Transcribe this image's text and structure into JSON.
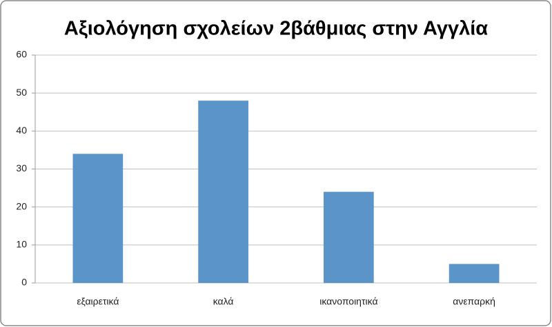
{
  "chart_data": {
    "type": "bar",
    "title": "Αξιολόγηση σχολείων 2βάθμιας στην Αγγλία",
    "categories": [
      "εξαιρετικά",
      "καλά",
      "ικανοποιητικά",
      "ανεπαρκή"
    ],
    "values": [
      34,
      48,
      24,
      5
    ],
    "color": "#5b94c9",
    "ylim": [
      0,
      60
    ],
    "yticks": [
      0,
      10,
      20,
      30,
      40,
      50,
      60
    ],
    "grid": true
  }
}
